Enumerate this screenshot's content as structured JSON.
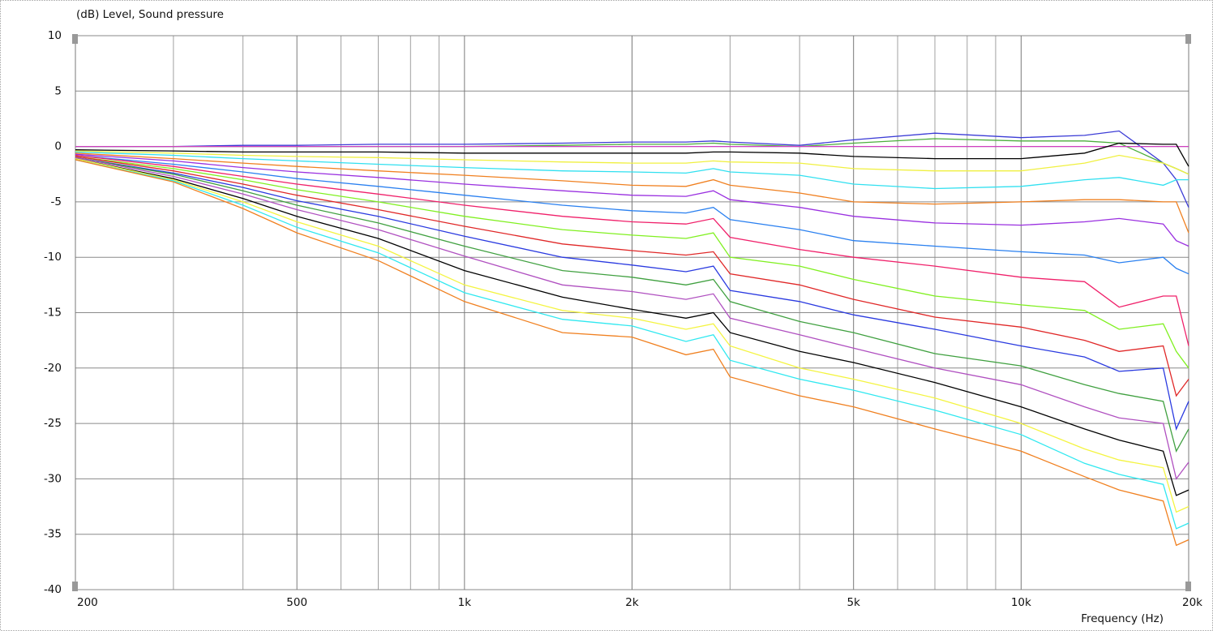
{
  "chart_data": {
    "type": "line",
    "log_x": true,
    "grid": true,
    "y_label": "(dB)  Level, Sound pressure",
    "x_label": "Frequency  (Hz)",
    "xlim": [
      200,
      20000
    ],
    "ylim": [
      -40,
      10
    ],
    "yticks": [
      10,
      5,
      0,
      -5,
      -10,
      -15,
      -20,
      -25,
      -30,
      -35,
      -40
    ],
    "xticks": [
      200,
      500,
      {
        "value": 1000,
        "label": "1k"
      },
      {
        "value": 2000,
        "label": "2k"
      },
      {
        "value": 5000,
        "label": "5k"
      },
      {
        "value": 10000,
        "label": "10k"
      },
      {
        "value": 20000,
        "label": "20k"
      }
    ],
    "xminor": [
      300,
      400,
      600,
      700,
      800,
      900,
      3000,
      4000,
      6000,
      7000,
      8000,
      9000
    ],
    "x": [
      200,
      300,
      400,
      500,
      700,
      1000,
      1500,
      2000,
      2500,
      2800,
      3000,
      4000,
      5000,
      7000,
      10000,
      13000,
      15000,
      18000,
      19000,
      20000
    ],
    "series": [
      {
        "color": "#3c3cd6",
        "values": [
          0,
          0,
          0.1,
          0.1,
          0.2,
          0.2,
          0.3,
          0.4,
          0.4,
          0.5,
          0.4,
          0.1,
          0.6,
          1.2,
          0.8,
          1.0,
          1.4,
          -1.5,
          -3,
          -5.5
        ]
      },
      {
        "color": "#4caf3c",
        "values": [
          0,
          0,
          0,
          0,
          0,
          0,
          0.1,
          0.2,
          0.2,
          0.3,
          0.2,
          0,
          0.3,
          0.7,
          0.5,
          0.5,
          0.3,
          -1.5,
          -2,
          -2.5
        ]
      },
      {
        "color": "#d040c0",
        "values": [
          0,
          0,
          0,
          0,
          0,
          0,
          0,
          0,
          0,
          0,
          0,
          0,
          0,
          0,
          0,
          0,
          0,
          0,
          0,
          0
        ]
      },
      {
        "color": "#000000",
        "values": [
          -0.3,
          -0.4,
          -0.5,
          -0.5,
          -0.5,
          -0.6,
          -0.6,
          -0.6,
          -0.6,
          -0.5,
          -0.5,
          -0.6,
          -0.9,
          -1.1,
          -1.1,
          -0.6,
          0.3,
          0.2,
          0.2,
          -1.8
        ]
      },
      {
        "color": "#f0f040",
        "values": [
          -0.4,
          -0.6,
          -0.8,
          -0.9,
          -1,
          -1.2,
          -1.4,
          -1.5,
          -1.5,
          -1.3,
          -1.4,
          -1.5,
          -2,
          -2.2,
          -2.2,
          -1.5,
          -0.8,
          -1.5,
          -2,
          -2.5
        ]
      },
      {
        "color": "#30e0f0",
        "values": [
          -0.5,
          -0.8,
          -1.1,
          -1.3,
          -1.6,
          -1.9,
          -2.2,
          -2.3,
          -2.4,
          -2,
          -2.3,
          -2.6,
          -3.4,
          -3.8,
          -3.6,
          -3,
          -2.8,
          -3.5,
          -3,
          -3
        ]
      },
      {
        "color": "#f08020",
        "values": [
          -0.6,
          -1.1,
          -1.5,
          -1.8,
          -2.2,
          -2.6,
          -3.1,
          -3.5,
          -3.6,
          -3,
          -3.5,
          -4.2,
          -5,
          -5.2,
          -5,
          -4.8,
          -4.8,
          -5,
          -5,
          -7.8
        ]
      },
      {
        "color": "#9a30e0",
        "values": [
          -0.7,
          -1.3,
          -1.9,
          -2.3,
          -2.8,
          -3.4,
          -4,
          -4.4,
          -4.5,
          -4,
          -4.8,
          -5.5,
          -6.3,
          -6.9,
          -7.1,
          -6.8,
          -6.5,
          -7,
          -8.5,
          -9
        ]
      },
      {
        "color": "#2a80f0",
        "values": [
          -0.8,
          -1.6,
          -2.3,
          -2.9,
          -3.6,
          -4.4,
          -5.3,
          -5.8,
          -6,
          -5.5,
          -6.6,
          -7.5,
          -8.5,
          -9,
          -9.5,
          -9.8,
          -10.5,
          -10,
          -11,
          -11.5
        ]
      },
      {
        "color": "#f0206a",
        "values": [
          -0.8,
          -1.8,
          -2.7,
          -3.4,
          -4.3,
          -5.3,
          -6.3,
          -6.8,
          -7,
          -6.5,
          -8.2,
          -9.3,
          -10,
          -10.8,
          -11.8,
          -12.2,
          -14.5,
          -13.5,
          -13.5,
          -18
        ]
      },
      {
        "color": "#80f020",
        "values": [
          -0.9,
          -2,
          -3,
          -3.9,
          -5,
          -6.3,
          -7.5,
          -8,
          -8.3,
          -7.8,
          -10,
          -10.8,
          -12,
          -13.5,
          -14.3,
          -14.8,
          -16.5,
          -16,
          -18.5,
          -20
        ]
      },
      {
        "color": "#e02828",
        "values": [
          -0.9,
          -2.2,
          -3.4,
          -4.4,
          -5.7,
          -7.2,
          -8.8,
          -9.4,
          -9.8,
          -9.5,
          -11.5,
          -12.5,
          -13.8,
          -15.4,
          -16.3,
          -17.5,
          -18.5,
          -18,
          -22.5,
          -21
        ]
      },
      {
        "color": "#2a3ae0",
        "values": [
          -1,
          -2.4,
          -3.7,
          -4.9,
          -6.3,
          -8.1,
          -10,
          -10.7,
          -11.3,
          -10.8,
          -13,
          -14,
          -15.2,
          -16.5,
          -18,
          -19,
          -20.3,
          -20,
          -25.5,
          -23
        ]
      },
      {
        "color": "#40a040",
        "values": [
          -1,
          -2.5,
          -4,
          -5.3,
          -6.9,
          -9,
          -11.2,
          -11.8,
          -12.5,
          -12,
          -14,
          -15.8,
          -16.8,
          -18.7,
          -19.8,
          -21.5,
          -22.3,
          -23,
          -27.5,
          -25.5
        ]
      },
      {
        "color": "#b050c0",
        "values": [
          -1,
          -2.7,
          -4.3,
          -5.7,
          -7.5,
          -9.9,
          -12.5,
          -13.1,
          -13.8,
          -13.3,
          -15.5,
          -17,
          -18.2,
          -20,
          -21.5,
          -23.5,
          -24.5,
          -25,
          -30,
          -28.5
        ]
      },
      {
        "color": "#000000",
        "values": [
          -1.1,
          -2.9,
          -4.7,
          -6.3,
          -8.3,
          -11.2,
          -13.6,
          -14.7,
          -15.5,
          -15,
          -16.8,
          -18.5,
          -19.5,
          -21.3,
          -23.5,
          -25.5,
          -26.5,
          -27.5,
          -31.5,
          -31
        ]
      },
      {
        "color": "#f4f440",
        "values": [
          -1.1,
          -3,
          -5,
          -6.8,
          -9,
          -12.5,
          -14.8,
          -15.5,
          -16.5,
          -16,
          -18,
          -20,
          -21,
          -22.7,
          -25,
          -27.3,
          -28.3,
          -29,
          -33,
          -32.5
        ]
      },
      {
        "color": "#30e8f0",
        "values": [
          -1.2,
          -3.1,
          -5.3,
          -7.3,
          -9.6,
          -13.2,
          -15.6,
          -16.2,
          -17.6,
          -17,
          -19.3,
          -21,
          -22,
          -23.8,
          -26,
          -28.6,
          -29.6,
          -30.5,
          -34.5,
          -34
        ]
      },
      {
        "color": "#f08020",
        "values": [
          -1.2,
          -3.2,
          -5.6,
          -7.8,
          -10.3,
          -14,
          -16.8,
          -17.2,
          -18.8,
          -18.3,
          -20.8,
          -22.5,
          -23.5,
          -25.5,
          -27.5,
          -29.8,
          -31,
          -32,
          -36,
          -35.5
        ]
      }
    ]
  }
}
